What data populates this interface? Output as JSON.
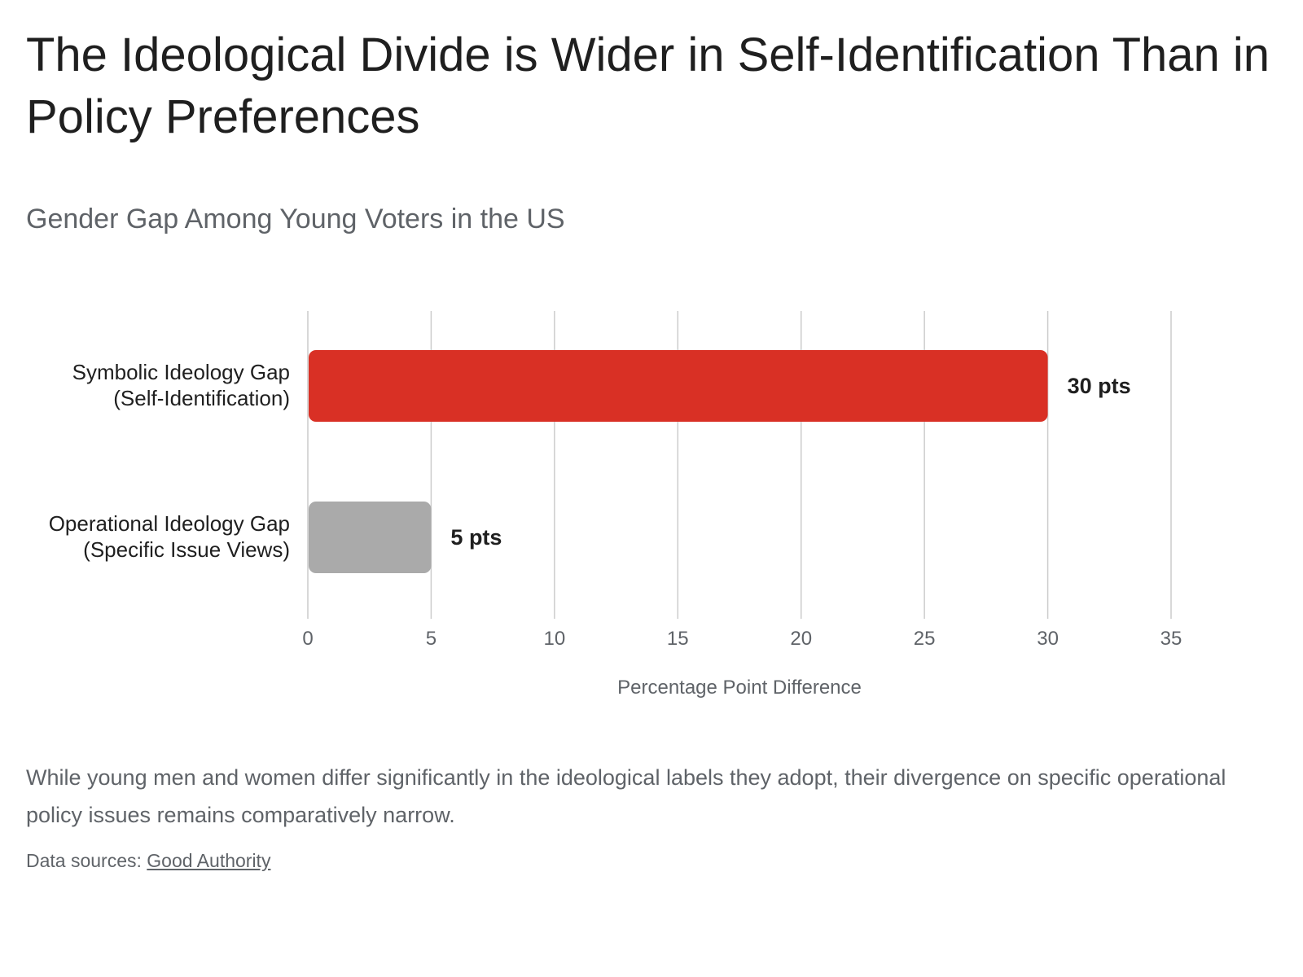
{
  "header": {
    "title": "The Ideological Divide is Wider in Self-Identification Than in Policy Preferences",
    "subtitle": "Gender Gap Among Young Voters in the US"
  },
  "footer": {
    "description": "While young men and women differ significantly in the ideological labels they adopt, their divergence on specific operational policy issues remains comparatively narrow.",
    "sources_label": "Data sources:",
    "source_link": "Good Authority"
  },
  "chart_data": {
    "type": "bar",
    "orientation": "horizontal",
    "categories": [
      [
        "Symbolic Ideology Gap",
        "(Self-Identification)"
      ],
      [
        "Operational Ideology Gap",
        "(Specific Issue Views)"
      ]
    ],
    "values": [
      30,
      5
    ],
    "data_labels": [
      "30 pts",
      "5 pts"
    ],
    "bar_colors": [
      "#d93025",
      "#aaaaaa"
    ],
    "xlabel": "Percentage Point Difference",
    "xlim": [
      0,
      35
    ],
    "xticks": [
      "0",
      "5",
      "10",
      "15",
      "20",
      "25",
      "30",
      "35"
    ],
    "grid": true
  }
}
